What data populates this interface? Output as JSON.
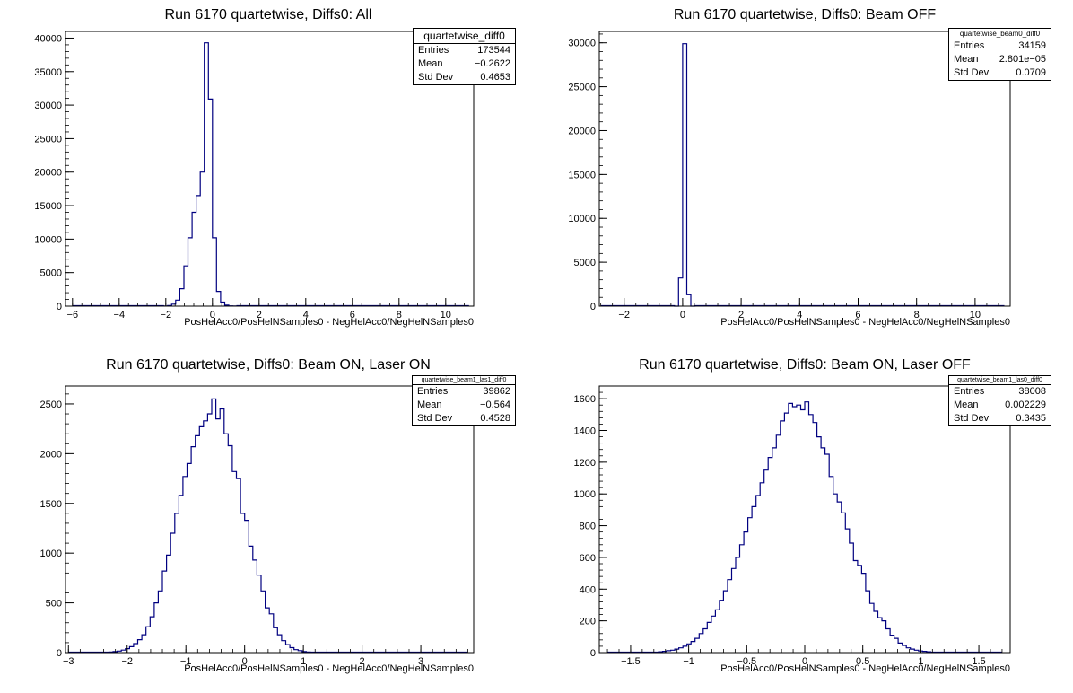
{
  "chart_data": [
    {
      "type": "bar",
      "title": "Run 6170 quartetwise, Diffs0: All",
      "xlabel": "PosHelAcc0/PosHelNSamples0 - NegHelAcc0/NegHelNSamples0",
      "xlim": [
        -6.3,
        11.2
      ],
      "ylim": [
        0,
        41000
      ],
      "xticks": [
        -6,
        -4,
        -2,
        0,
        2,
        4,
        6,
        8,
        10
      ],
      "yticks": [
        0,
        5000,
        10000,
        15000,
        20000,
        25000,
        30000,
        35000,
        40000
      ],
      "stats": {
        "name": "quartetwise_diff0",
        "entries": "173544",
        "mean": "−0.2622",
        "stddev": "0.4653"
      },
      "bin_width": 0.175,
      "bin_start": -2.1,
      "values": [
        20,
        80,
        300,
        900,
        2600,
        6000,
        10200,
        14000,
        16500,
        20000,
        39300,
        30900,
        10200,
        2200,
        600,
        150,
        40,
        10
      ],
      "baseline_range": [
        -6.0,
        11.0
      ]
    },
    {
      "type": "bar",
      "title": "Run 6170 quartetwise, Diffs0: Beam OFF",
      "xlabel": "PosHelAcc0/PosHelNSamples0 - NegHelAcc0/NegHelNSamples0",
      "xlim": [
        -2.85,
        11.2
      ],
      "ylim": [
        0,
        31300
      ],
      "xticks": [
        -2,
        0,
        2,
        4,
        6,
        8,
        10
      ],
      "yticks": [
        0,
        5000,
        10000,
        15000,
        20000,
        25000,
        30000
      ],
      "stats": {
        "name": "quartetwise_beam0_diff0",
        "entries": "34159",
        "mean": "2.801e−05",
        "stddev": "0.0709"
      },
      "bin_width": 0.14,
      "bin_start": -0.28,
      "values": [
        0,
        3200,
        29900,
        1300,
        0
      ],
      "baseline_range": [
        -2.8,
        11.0
      ]
    },
    {
      "type": "bar",
      "title": "Run 6170 quartetwise, Diffs0: Beam ON, Laser ON",
      "xlabel": "PosHelAcc0/PosHelNSamples0 - NegHelAcc0/NegHelNSamples0",
      "xlim": [
        -3.05,
        3.9
      ],
      "ylim": [
        0,
        2680
      ],
      "xticks": [
        -3,
        -2,
        -1,
        0,
        1,
        2,
        3
      ],
      "yticks": [
        0,
        500,
        1000,
        1500,
        2000,
        2500
      ],
      "stats": {
        "name": "quartetwise_beam1_las1_diff0",
        "entries": "39862",
        "mean": "−0.564",
        "stddev": "0.4528"
      },
      "bin_width": 0.07,
      "bin_start": -2.31,
      "values": [
        5,
        10,
        15,
        25,
        40,
        60,
        90,
        130,
        180,
        260,
        360,
        500,
        620,
        820,
        980,
        1200,
        1400,
        1580,
        1770,
        1900,
        2070,
        2180,
        2270,
        2330,
        2400,
        2550,
        2350,
        2450,
        2200,
        2080,
        1820,
        1750,
        1400,
        1330,
        1070,
        930,
        780,
        620,
        450,
        390,
        250,
        180,
        120,
        80,
        50,
        30,
        20,
        10,
        5
      ],
      "baseline_range": [
        -3.0,
        3.8
      ]
    },
    {
      "type": "bar",
      "title": "Run 6170 quartetwise, Diffs0: Beam ON, Laser OFF",
      "xlabel": "PosHelAcc0/PosHelNSamples0 - NegHelAcc0/NegHelNSamples0",
      "xlim": [
        -1.77,
        1.77
      ],
      "ylim": [
        0,
        1680
      ],
      "xticks": [
        -1.5,
        -1,
        -0.5,
        0,
        0.5,
        1,
        1.5
      ],
      "yticks": [
        0,
        200,
        400,
        600,
        800,
        1000,
        1200,
        1400,
        1600
      ],
      "stats": {
        "name": "quartetwise_beam1_las0_diff0",
        "entries": "38008",
        "mean": "0.002229",
        "stddev": "0.3435"
      },
      "bin_width": 0.035,
      "bin_start": -1.26,
      "values": [
        5,
        8,
        12,
        15,
        22,
        30,
        40,
        55,
        70,
        90,
        120,
        150,
        190,
        230,
        270,
        330,
        390,
        460,
        530,
        600,
        680,
        760,
        850,
        920,
        990,
        1070,
        1150,
        1230,
        1290,
        1370,
        1460,
        1510,
        1570,
        1550,
        1560,
        1530,
        1580,
        1500,
        1450,
        1360,
        1290,
        1250,
        1110,
        1000,
        950,
        880,
        780,
        690,
        580,
        550,
        500,
        390,
        310,
        260,
        220,
        200,
        150,
        110,
        90,
        60,
        45,
        30,
        22,
        15,
        10,
        8,
        5
      ],
      "baseline_range": [
        -1.7,
        1.7
      ]
    }
  ]
}
